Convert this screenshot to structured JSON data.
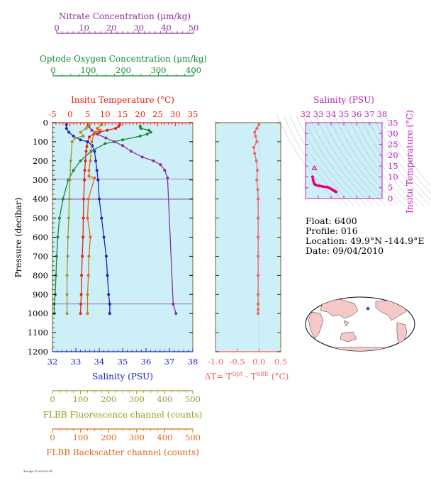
{
  "info": {
    "float_line": "Float:  6400",
    "profile_line": "Profile:  016",
    "location_line": "Location:  49.9°N  -144.9°E",
    "date_line": "Date:  09/04/2010"
  },
  "footer_note": "Tue Apr 13 2010 12:41",
  "colors": {
    "panel_bg": "#cdeff8",
    "nitrate": "#8b2f9a",
    "oxygen": "#138a30",
    "temperature": "#e8200c",
    "salinity": "#1a22c8",
    "fluorescence": "#9a9a2c",
    "backscatter": "#dd6a1a",
    "delta_t": "#f06262",
    "ts_points": "#e6007e",
    "map_land": "#f6c8c8",
    "map_marker": "#1a22c8"
  },
  "axes": {
    "nitrate": {
      "title": "Nitrate Concentration (μm/kg)",
      "ticks": [
        "0",
        "10",
        "20",
        "30",
        "40",
        "50"
      ]
    },
    "oxygen": {
      "title": "Optode Oxygen Concentration (μm/kg)",
      "ticks": [
        "0",
        "100",
        "200",
        "300",
        "400"
      ]
    },
    "temperature": {
      "title": "Insitu Temperature (°C)",
      "ticks": [
        "-5",
        "0",
        "5",
        "10",
        "15",
        "20",
        "25",
        "30",
        "35"
      ]
    },
    "pressure": {
      "title": "Pressure (decibar)",
      "ticks": [
        "0",
        "100",
        "200",
        "300",
        "400",
        "500",
        "600",
        "700",
        "800",
        "900",
        "1000",
        "1100",
        "1200"
      ]
    },
    "salinity": {
      "title": "Salinity (PSU)",
      "ticks": [
        "32",
        "33",
        "34",
        "35",
        "36",
        "37",
        "38"
      ]
    },
    "fluorescence": {
      "title": "FLBB Fluorescence channel (counts)",
      "ticks": [
        "0",
        "100",
        "200",
        "300",
        "400",
        "500"
      ]
    },
    "backscatter": {
      "title": "FLBB Backscatter channel (counts)",
      "ticks": [
        "0",
        "100",
        "200",
        "300",
        "400",
        "500"
      ]
    },
    "delta_t": {
      "title": "ΔT= T",
      "sup1": "Opt",
      "mid": " - T",
      "sup2": "SBE",
      "unit": " (°C)",
      "ticks": [
        "-1.0",
        "-0.5",
        "0.0",
        "0.5"
      ]
    },
    "ts_salinity": {
      "title": "Salinity (PSU)",
      "ticks": [
        "32",
        "33",
        "34",
        "35",
        "36",
        "37",
        "38"
      ]
    },
    "ts_temperature": {
      "title": "Insitu Temperature (°C)",
      "ticks": [
        "0",
        "5",
        "10",
        "15",
        "20",
        "25",
        "30",
        "35"
      ]
    }
  },
  "chart_data": [
    {
      "type": "line",
      "title": "",
      "ylabel": "Pressure (decibar)",
      "ylim": [
        1200,
        0
      ],
      "series": [
        {
          "name": "Insitu Temperature (°C)",
          "xlim": [
            -5,
            35
          ],
          "x": [
            14.2,
            13.8,
            13.0,
            10.6,
            8.4,
            6.8,
            5.5,
            5.0,
            4.8,
            4.6,
            4.4,
            4.2,
            4.1,
            3.9,
            3.8,
            3.7,
            3.5,
            3.3,
            3.2,
            3.1,
            3.0
          ],
          "y": [
            10,
            20,
            30,
            40,
            50,
            60,
            75,
            100,
            125,
            150,
            200,
            250,
            300,
            400,
            500,
            600,
            700,
            800,
            900,
            950,
            1000
          ]
        },
        {
          "name": "Salinity (PSU)",
          "xlim": [
            32,
            38
          ],
          "x": [
            32.6,
            32.6,
            32.7,
            32.9,
            33.2,
            33.5,
            33.7,
            33.8,
            33.85,
            33.9,
            33.95,
            34.0,
            34.1,
            34.2,
            34.3,
            34.35,
            34.4,
            34.45,
            34.45
          ],
          "y": [
            10,
            30,
            50,
            70,
            90,
            100,
            120,
            150,
            200,
            250,
            300,
            400,
            500,
            600,
            700,
            800,
            900,
            950,
            1000
          ]
        },
        {
          "name": "Nitrate Concentration (μm/kg)",
          "xlim": [
            0,
            50
          ],
          "x": [
            13.0,
            14.0,
            16.0,
            19.0,
            22.0,
            25.0,
            28.0,
            32.0,
            36.0,
            38.5,
            40.0,
            41.0,
            43.0,
            44.0
          ],
          "y": [
            20,
            40,
            60,
            80,
            100,
            120,
            150,
            180,
            200,
            220,
            250,
            290,
            950,
            1000
          ]
        },
        {
          "name": "Optode Oxygen Concentration (μm/kg)",
          "xlim": [
            0,
            400
          ],
          "x": [
            250,
            252,
            275,
            280,
            270,
            250,
            200,
            150,
            110,
            80,
            60,
            45,
            30,
            20,
            15,
            12,
            10,
            8,
            5,
            5
          ],
          "y": [
            20,
            30,
            40,
            50,
            60,
            70,
            90,
            110,
            150,
            200,
            250,
            300,
            400,
            500,
            600,
            700,
            800,
            900,
            950,
            1000
          ]
        },
        {
          "name": "FLBB Fluorescence channel (counts)",
          "xlim": [
            0,
            500
          ],
          "x": [
            130,
            125,
            120,
            100,
            110,
            80,
            70,
            65,
            62,
            60,
            58,
            55,
            54,
            52,
            52,
            52
          ],
          "y": [
            10,
            20,
            30,
            50,
            70,
            80,
            100,
            200,
            300,
            400,
            500,
            600,
            700,
            800,
            900,
            1000
          ]
        },
        {
          "name": "FLBB Backscatter channel (counts)",
          "xlim": [
            0,
            500
          ],
          "x": [
            175,
            160,
            170,
            150,
            140,
            135,
            130,
            130,
            150,
            128,
            125,
            135,
            130,
            128,
            125,
            125
          ],
          "y": [
            10,
            30,
            40,
            50,
            100,
            200,
            250,
            280,
            290,
            400,
            500,
            600,
            700,
            800,
            900,
            1000
          ]
        }
      ]
    },
    {
      "type": "line",
      "title": "",
      "xlabel": "ΔT= TOpt - TSBE (°C)",
      "xlim": [
        -1.0,
        0.5
      ],
      "ylim": [
        1200,
        0
      ],
      "series": [
        {
          "name": "ΔT",
          "x": [
            0.0,
            -0.05,
            -0.1,
            -0.08,
            -0.05,
            -0.12,
            -0.1,
            -0.06,
            -0.04,
            -0.05,
            -0.03,
            -0.02,
            -0.02,
            -0.02,
            -0.02,
            -0.02,
            -0.02,
            -0.02,
            -0.02,
            -0.02
          ],
          "y": [
            10,
            30,
            50,
            70,
            100,
            130,
            160,
            200,
            250,
            300,
            350,
            400,
            500,
            600,
            700,
            800,
            900,
            950,
            980,
            1000
          ]
        }
      ]
    },
    {
      "type": "scatter",
      "title": "",
      "xlabel": "Salinity (PSU)",
      "ylabel": "Insitu Temperature (°C)",
      "xlim": [
        32,
        38
      ],
      "ylim": [
        0,
        35
      ],
      "series": [
        {
          "name": "T-S",
          "x": [
            32.55,
            32.6,
            32.65,
            32.7,
            32.8,
            32.95,
            33.1,
            33.3,
            33.5,
            33.7,
            33.85,
            34.0,
            34.1,
            34.2,
            34.3,
            34.4,
            32.7
          ],
          "y": [
            10.0,
            8.5,
            7.5,
            6.7,
            6.3,
            6.0,
            5.8,
            5.6,
            5.4,
            5.3,
            4.9,
            4.5,
            4.1,
            3.7,
            3.4,
            3.1,
            14.0
          ]
        }
      ]
    }
  ]
}
